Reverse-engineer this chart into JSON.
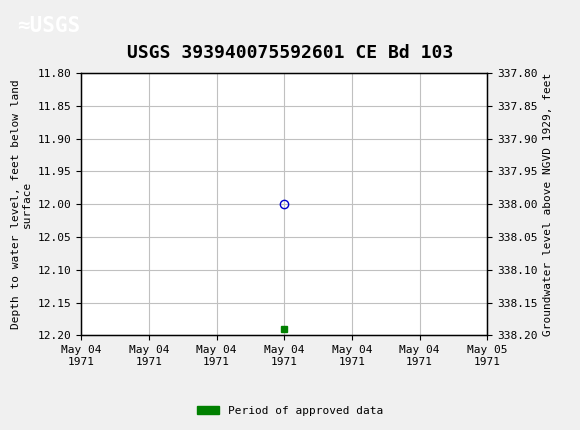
{
  "title": "USGS 393940075592601 CE Bd 103",
  "header_bg_color": "#1a6b3c",
  "plot_bg_color": "#ffffff",
  "grid_color": "#c0c0c0",
  "fig_bg_color": "#f0f0f0",
  "left_ylabel": "Depth to water level, feet below land\nsurface",
  "right_ylabel": "Groundwater level above NGVD 1929, feet",
  "ylim_left": [
    11.8,
    12.2
  ],
  "ylim_right": [
    337.8,
    338.2
  ],
  "yticks_left": [
    11.8,
    11.85,
    11.9,
    11.95,
    12.0,
    12.05,
    12.1,
    12.15,
    12.2
  ],
  "yticks_right": [
    337.8,
    337.85,
    337.9,
    337.95,
    338.0,
    338.05,
    338.1,
    338.15,
    338.2
  ],
  "data_point_x": 3,
  "data_point_y": 12.0,
  "data_point_color": "#0000cc",
  "data_point_marker": "o",
  "green_square_x": 3,
  "green_square_y": 12.19,
  "green_square_color": "#008000",
  "xtick_labels": [
    "May 04\n1971",
    "May 04\n1971",
    "May 04\n1971",
    "May 04\n1971",
    "May 04\n1971",
    "May 04\n1971",
    "May 05\n1971"
  ],
  "xlim": [
    0,
    6
  ],
  "legend_label": "Period of approved data",
  "legend_color": "#008000",
  "title_fontsize": 13,
  "axis_fontsize": 8,
  "tick_fontsize": 8,
  "font_family": "DejaVu Sans Mono"
}
